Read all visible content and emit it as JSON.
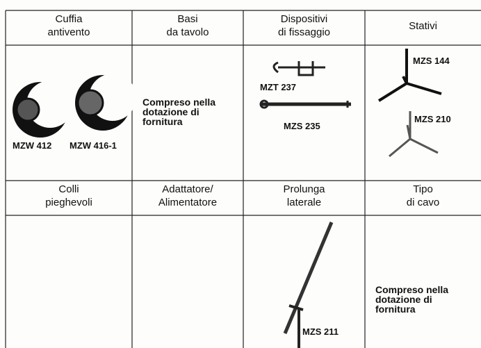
{
  "table": {
    "header_rows": [
      [
        [
          "Cuffia",
          "antivento"
        ],
        [
          "Basi",
          "da tavolo"
        ],
        [
          "Dispositivi",
          "di fissaggio"
        ],
        [
          "Stativi"
        ]
      ],
      [
        [
          "Colli",
          "pieghevoli"
        ],
        [
          "Adattatore/",
          "Alimentatore"
        ],
        [
          "Prolunga",
          "laterale"
        ],
        [
          "Tipo",
          "di cavo"
        ]
      ]
    ],
    "row1": {
      "windscreen_labels": [
        "MZW 412",
        "MZW 416-1"
      ],
      "desk_note": [
        "Compreso nella",
        "dotazione di",
        "fornitura"
      ],
      "clamp_labels": [
        "MZT 237",
        "MZS 235"
      ],
      "stand_labels": [
        "MZS 144",
        "MZS 210"
      ]
    },
    "row2": {
      "extension_label": "MZS 211",
      "cable_note": [
        "Compreso nella",
        "dotazione di",
        "fornitura"
      ]
    }
  }
}
